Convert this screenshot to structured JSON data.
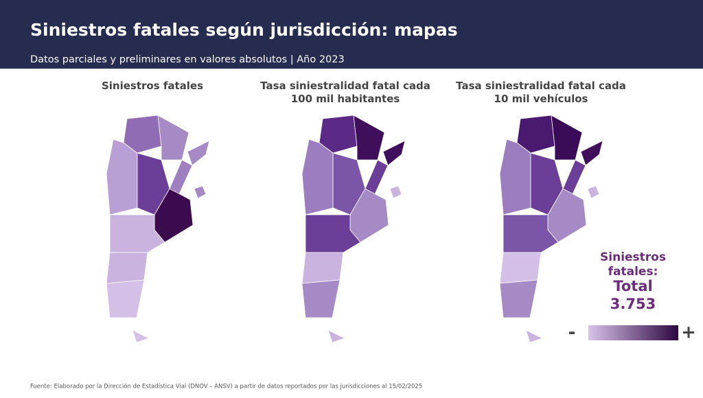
{
  "header": {
    "title": "Siniestros fatales según jurisdicción: mapas",
    "subtitle": "Datos parciales y preliminares en valores absolutos | Año 2023"
  },
  "maps": [
    {
      "title": "Siniestros fatales"
    },
    {
      "title": "Tasa siniestralidad fatal cada 100 mil habitantes"
    },
    {
      "title": "Tasa siniestralidad fatal cada 10 mil vehículos"
    }
  ],
  "summary": {
    "label": "Siniestros fatales:",
    "total_label": "Total",
    "total": "3.753"
  },
  "legend": {
    "low": "-",
    "high": "+"
  },
  "footer": {
    "source": "Fuente: Elaborado por la Dirección de Estadística Vial (DNOV – ANSV) a partir de datos reportados por las jurisdicciones al 15/02/2025"
  }
}
